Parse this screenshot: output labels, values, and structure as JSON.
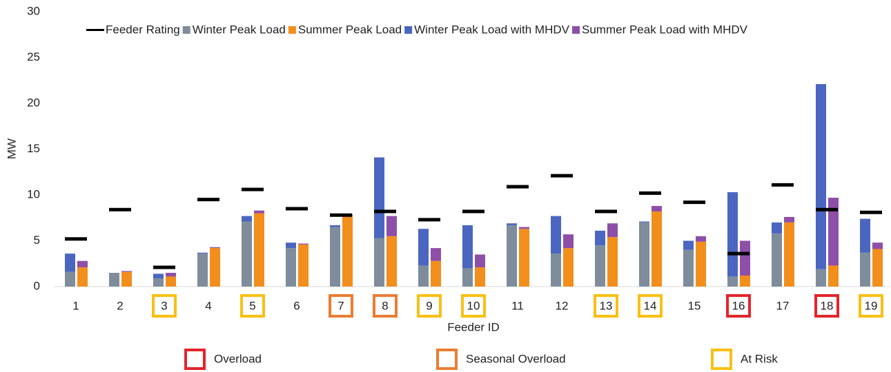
{
  "chart_data": {
    "type": "bar",
    "x_label": "Feeder ID",
    "y_label": "MW",
    "categories": [
      "1",
      "2",
      "3",
      "4",
      "5",
      "6",
      "7",
      "8",
      "9",
      "10",
      "11",
      "12",
      "13",
      "14",
      "15",
      "16",
      "17",
      "18",
      "19"
    ],
    "series": [
      {
        "name": "Feeder Rating",
        "color": "#000000",
        "values": [
          5.2,
          8.4,
          2.1,
          9.5,
          10.6,
          8.5,
          7.8,
          8.2,
          7.3,
          8.2,
          10.9,
          12.1,
          8.2,
          10.2,
          9.2,
          3.6,
          11.1,
          8.4,
          8.1
        ]
      },
      {
        "name": "Winter Peak Load",
        "color": "#7f8c9c",
        "values": [
          1.6,
          1.5,
          0.9,
          3.6,
          7.1,
          4.2,
          6.5,
          5.3,
          2.3,
          2.0,
          6.7,
          3.6,
          4.5,
          7.0,
          4.0,
          1.1,
          5.8,
          1.9,
          3.7
        ]
      },
      {
        "name": "Summer Peak Load",
        "color": "#f28e1c",
        "values": [
          2.1,
          1.6,
          1.1,
          4.2,
          8.0,
          4.6,
          7.7,
          5.5,
          2.8,
          2.1,
          6.3,
          4.2,
          5.4,
          8.2,
          4.9,
          1.2,
          7.0,
          2.3,
          4.1
        ]
      },
      {
        "name": "Winter Peak Load with MHDV",
        "color": "#4a66c0",
        "values": [
          2.0,
          0.0,
          0.5,
          0.1,
          0.6,
          0.6,
          0.2,
          8.8,
          4.0,
          4.7,
          0.2,
          4.1,
          1.6,
          0.1,
          1.0,
          9.2,
          1.2,
          20.2,
          3.7
        ]
      },
      {
        "name": "Summer Peak Load with MHDV",
        "color": "#8e4fa8",
        "values": [
          0.7,
          0.1,
          0.4,
          0.1,
          0.3,
          0.1,
          0.2,
          2.2,
          1.4,
          1.4,
          0.2,
          1.5,
          1.5,
          0.6,
          0.6,
          3.8,
          0.6,
          7.4,
          0.7
        ]
      }
    ],
    "status": [
      null,
      null,
      "At Risk",
      null,
      "At Risk",
      null,
      "Seasonal Overload",
      "Seasonal Overload",
      "At Risk",
      "At Risk",
      null,
      null,
      "At Risk",
      "At Risk",
      null,
      "Overload",
      null,
      "Overload",
      "At Risk"
    ],
    "status_legend": [
      {
        "name": "Overload",
        "color": "#e3242b"
      },
      {
        "name": "Seasonal Overload",
        "color": "#ea7d32"
      },
      {
        "name": "At Risk",
        "color": "#f9c013"
      }
    ],
    "ylim": [
      0,
      30
    ],
    "yticks": [
      0,
      5,
      10,
      15,
      20,
      25,
      30
    ],
    "grid": false
  }
}
